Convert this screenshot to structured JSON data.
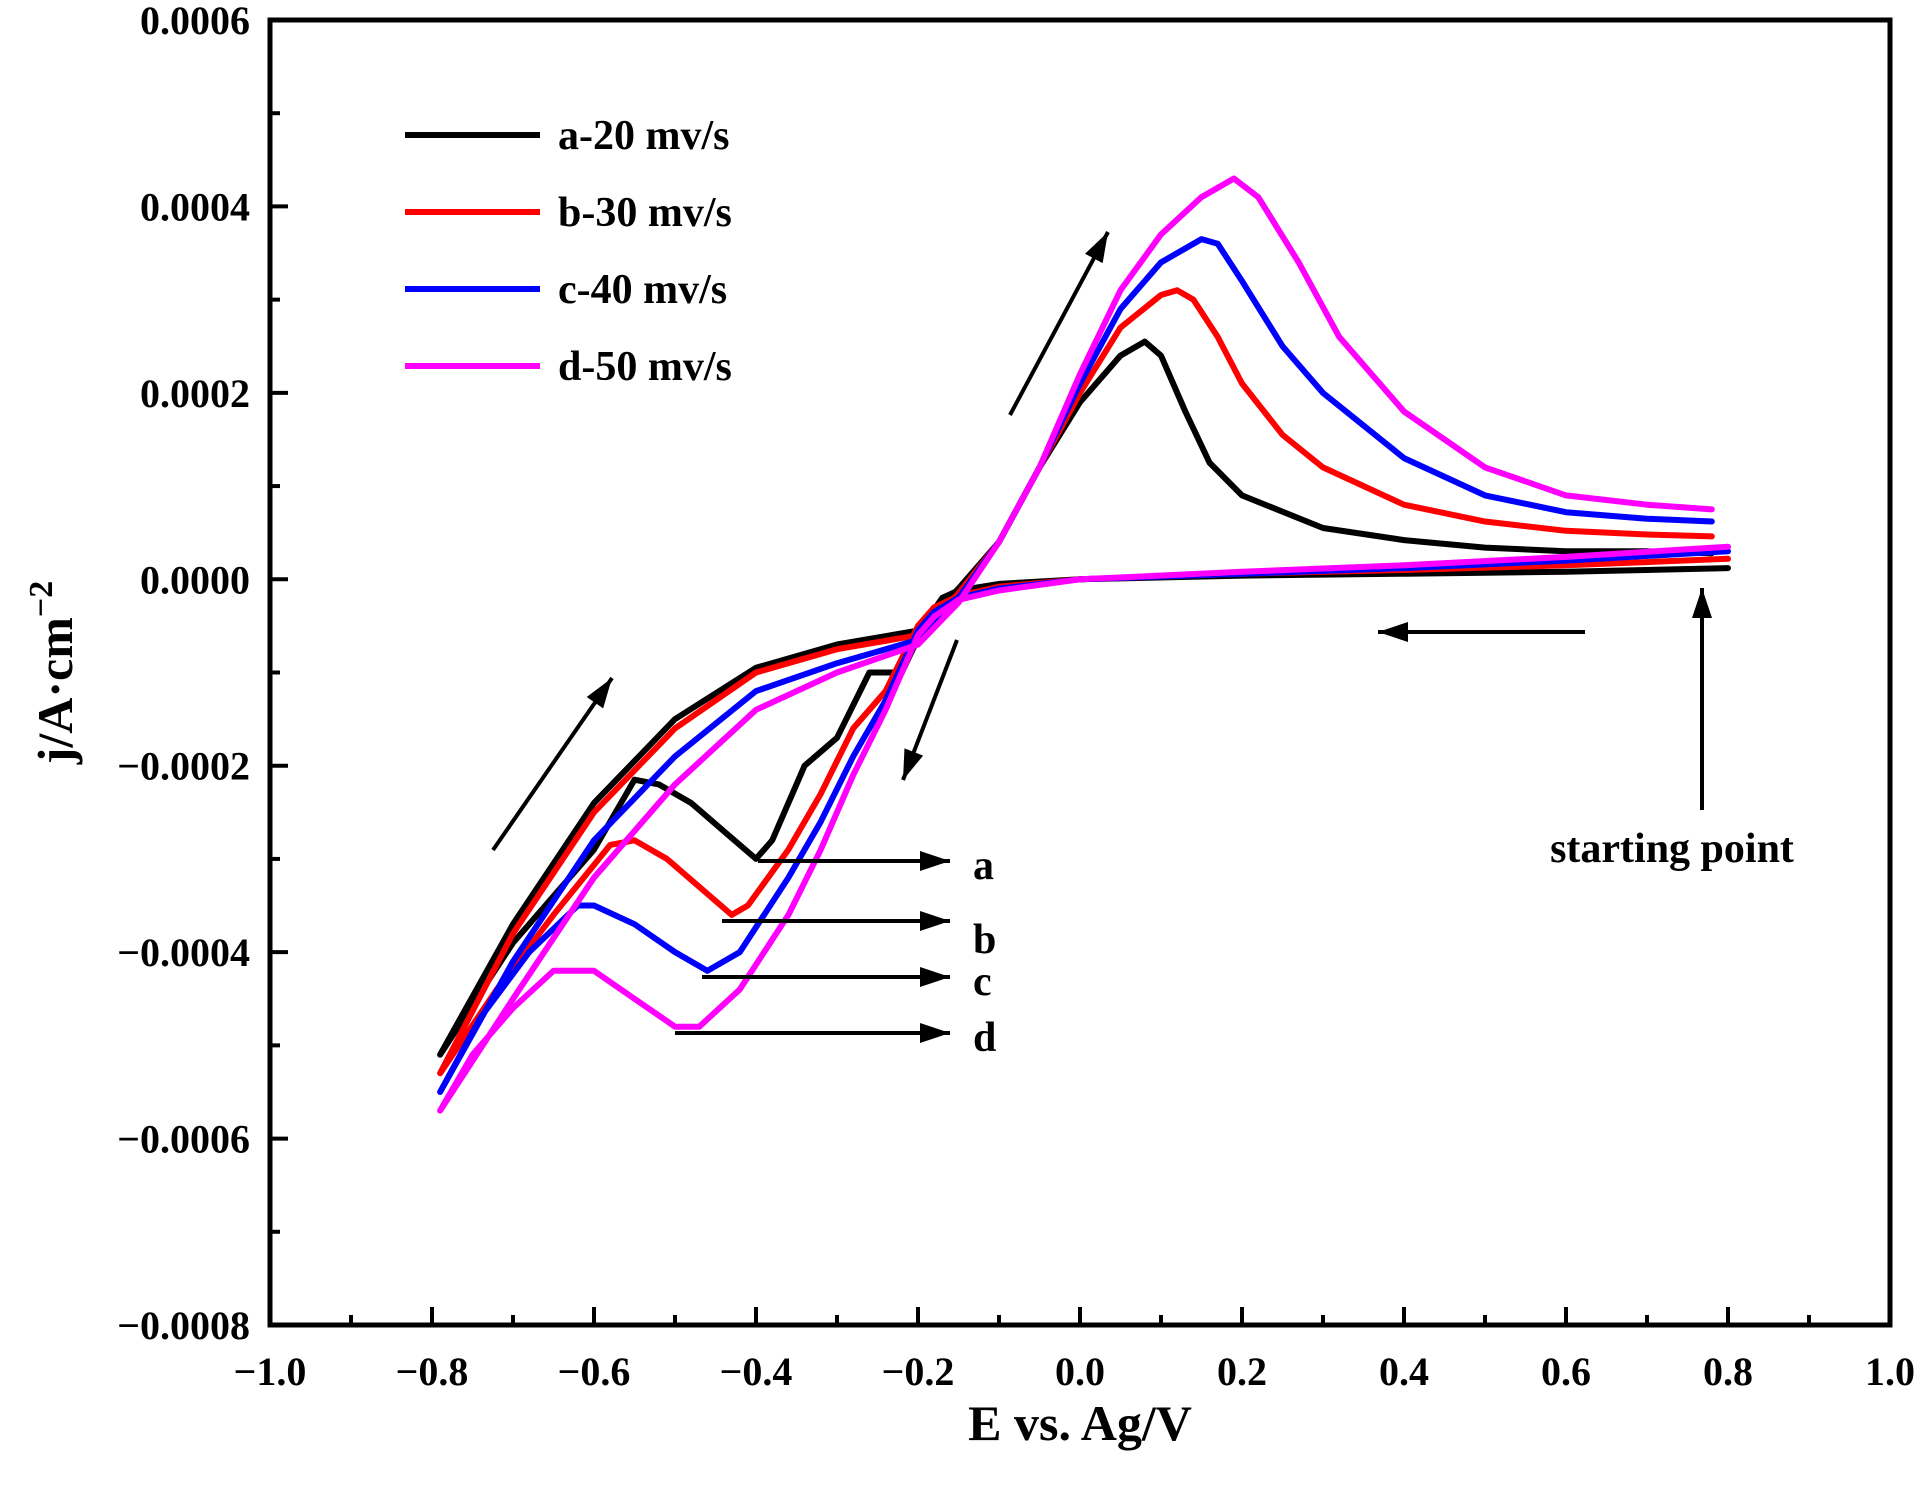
{
  "chart_data": {
    "type": "line",
    "xlabel": "E vs. Ag/V",
    "ylabel": "j/A·cm",
    "ylabel_superscript": "−2",
    "xlim": [
      -1.0,
      1.0
    ],
    "ylim": [
      -0.0008,
      0.0006
    ],
    "xticks": [
      -1.0,
      -0.8,
      -0.6,
      -0.4,
      -0.2,
      0.0,
      0.2,
      0.4,
      0.6,
      0.8,
      1.0
    ],
    "xtick_labels": [
      "−1.0",
      "−0.8",
      "−0.6",
      "−0.4",
      "−0.2",
      "0.0",
      "0.2",
      "0.4",
      "0.6",
      "0.8",
      "1.0"
    ],
    "yticks": [
      -0.0008,
      -0.0006,
      -0.0004,
      -0.0002,
      0.0,
      0.0002,
      0.0004,
      0.0006
    ],
    "ytick_labels": [
      "−0.0008",
      "−0.0006",
      "−0.0004",
      "−0.0002",
      "0.0000",
      "0.0002",
      "0.0004",
      "0.0006"
    ],
    "grid": false,
    "legend_position": "top-left",
    "series": [
      {
        "name": "a-20 mv/s",
        "color": "#000000",
        "label_letter": "a",
        "points": [
          [
            0.8,
            1.2e-05
          ],
          [
            0.6,
            8e-06
          ],
          [
            0.4,
            6e-06
          ],
          [
            0.2,
            4e-06
          ],
          [
            0.0,
            0.0
          ],
          [
            -0.1,
            -5e-06
          ],
          [
            -0.15,
            -1.2e-05
          ],
          [
            -0.17,
            -2e-05
          ],
          [
            -0.19,
            -4.5e-05
          ],
          [
            -0.22,
            -0.0001
          ],
          [
            -0.26,
            -0.0001
          ],
          [
            -0.3,
            -0.00017
          ],
          [
            -0.34,
            -0.0002
          ],
          [
            -0.38,
            -0.00028
          ],
          [
            -0.4,
            -0.0003
          ],
          [
            -0.44,
            -0.00027
          ],
          [
            -0.48,
            -0.00024
          ],
          [
            -0.52,
            -0.00022
          ],
          [
            -0.55,
            -0.000215
          ],
          [
            -0.6,
            -0.00029
          ],
          [
            -0.7,
            -0.00039
          ],
          [
            -0.79,
            -0.00051
          ],
          [
            -0.7,
            -0.00037
          ],
          [
            -0.6,
            -0.00024
          ],
          [
            -0.5,
            -0.00015
          ],
          [
            -0.4,
            -9.5e-05
          ],
          [
            -0.3,
            -7e-05
          ],
          [
            -0.2,
            -5.5e-05
          ],
          [
            -0.15,
            -1e-05
          ],
          [
            -0.1,
            4e-05
          ],
          [
            -0.05,
            0.00012
          ],
          [
            0.0,
            0.00019
          ],
          [
            0.05,
            0.00024
          ],
          [
            0.08,
            0.000255
          ],
          [
            0.1,
            0.00024
          ],
          [
            0.13,
            0.00018
          ],
          [
            0.16,
            0.000125
          ],
          [
            0.2,
            9e-05
          ],
          [
            0.3,
            5.5e-05
          ],
          [
            0.4,
            4.2e-05
          ],
          [
            0.5,
            3.4e-05
          ],
          [
            0.6,
            3e-05
          ],
          [
            0.7,
            3e-05
          ],
          [
            0.78,
            2.8e-05
          ]
        ]
      },
      {
        "name": "b-30 mv/s",
        "color": "#ff0000",
        "label_letter": "b",
        "points": [
          [
            0.8,
            2.2e-05
          ],
          [
            0.6,
            1.5e-05
          ],
          [
            0.4,
            1e-05
          ],
          [
            0.2,
            6e-06
          ],
          [
            0.0,
            0.0
          ],
          [
            -0.1,
            -8e-06
          ],
          [
            -0.15,
            -1.8e-05
          ],
          [
            -0.18,
            -3e-05
          ],
          [
            -0.2,
            -5e-05
          ],
          [
            -0.24,
            -0.00012
          ],
          [
            -0.28,
            -0.00016
          ],
          [
            -0.32,
            -0.00023
          ],
          [
            -0.36,
            -0.00029
          ],
          [
            -0.41,
            -0.00035
          ],
          [
            -0.43,
            -0.00036
          ],
          [
            -0.47,
            -0.00033
          ],
          [
            -0.51,
            -0.0003
          ],
          [
            -0.55,
            -0.00028
          ],
          [
            -0.58,
            -0.000285
          ],
          [
            -0.65,
            -0.00036
          ],
          [
            -0.72,
            -0.00044
          ],
          [
            -0.79,
            -0.00053
          ],
          [
            -0.7,
            -0.00038
          ],
          [
            -0.6,
            -0.00025
          ],
          [
            -0.5,
            -0.00016
          ],
          [
            -0.4,
            -0.0001
          ],
          [
            -0.3,
            -7.5e-05
          ],
          [
            -0.2,
            -6e-05
          ],
          [
            -0.15,
            -1.5e-05
          ],
          [
            -0.1,
            4e-05
          ],
          [
            -0.05,
            0.00012
          ],
          [
            0.0,
            0.0002
          ],
          [
            0.05,
            0.00027
          ],
          [
            0.1,
            0.000305
          ],
          [
            0.12,
            0.00031
          ],
          [
            0.14,
            0.0003
          ],
          [
            0.17,
            0.00026
          ],
          [
            0.2,
            0.00021
          ],
          [
            0.25,
            0.000155
          ],
          [
            0.3,
            0.00012
          ],
          [
            0.4,
            8e-05
          ],
          [
            0.5,
            6.2e-05
          ],
          [
            0.6,
            5.2e-05
          ],
          [
            0.7,
            4.8e-05
          ],
          [
            0.78,
            4.6e-05
          ]
        ]
      },
      {
        "name": "c-40 mv/s",
        "color": "#0000ff",
        "label_letter": "c",
        "points": [
          [
            0.8,
            3e-05
          ],
          [
            0.6,
            2e-05
          ],
          [
            0.4,
            1.2e-05
          ],
          [
            0.2,
            6e-06
          ],
          [
            0.0,
            0.0
          ],
          [
            -0.1,
            -1e-05
          ],
          [
            -0.15,
            -2e-05
          ],
          [
            -0.18,
            -3.5e-05
          ],
          [
            -0.2,
            -5.5e-05
          ],
          [
            -0.24,
            -0.00013
          ],
          [
            -0.28,
            -0.00019
          ],
          [
            -0.32,
            -0.00026
          ],
          [
            -0.36,
            -0.00032
          ],
          [
            -0.42,
            -0.0004
          ],
          [
            -0.46,
            -0.00042
          ],
          [
            -0.5,
            -0.0004
          ],
          [
            -0.55,
            -0.00037
          ],
          [
            -0.6,
            -0.00035
          ],
          [
            -0.62,
            -0.00035
          ],
          [
            -0.68,
            -0.0004
          ],
          [
            -0.74,
            -0.00047
          ],
          [
            -0.79,
            -0.00055
          ],
          [
            -0.7,
            -0.00041
          ],
          [
            -0.6,
            -0.00028
          ],
          [
            -0.5,
            -0.00019
          ],
          [
            -0.4,
            -0.00012
          ],
          [
            -0.3,
            -9e-05
          ],
          [
            -0.2,
            -6.5e-05
          ],
          [
            -0.15,
            -2e-05
          ],
          [
            -0.1,
            4e-05
          ],
          [
            -0.05,
            0.00012
          ],
          [
            0.0,
            0.00021
          ],
          [
            0.05,
            0.00029
          ],
          [
            0.1,
            0.00034
          ],
          [
            0.15,
            0.000365
          ],
          [
            0.17,
            0.00036
          ],
          [
            0.2,
            0.00032
          ],
          [
            0.25,
            0.00025
          ],
          [
            0.3,
            0.0002
          ],
          [
            0.4,
            0.00013
          ],
          [
            0.5,
            9e-05
          ],
          [
            0.6,
            7.2e-05
          ],
          [
            0.7,
            6.5e-05
          ],
          [
            0.78,
            6.2e-05
          ]
        ]
      },
      {
        "name": "d-50 mv/s",
        "color": "#ff00ff",
        "label_letter": "d",
        "points": [
          [
            0.8,
            3.5e-05
          ],
          [
            0.6,
            2.4e-05
          ],
          [
            0.4,
            1.5e-05
          ],
          [
            0.2,
            8e-06
          ],
          [
            0.0,
            0.0
          ],
          [
            -0.1,
            -1.2e-05
          ],
          [
            -0.15,
            -2.2e-05
          ],
          [
            -0.18,
            -4e-05
          ],
          [
            -0.2,
            -6e-05
          ],
          [
            -0.24,
            -0.00014
          ],
          [
            -0.28,
            -0.00021
          ],
          [
            -0.32,
            -0.00029
          ],
          [
            -0.36,
            -0.00036
          ],
          [
            -0.42,
            -0.00044
          ],
          [
            -0.47,
            -0.00048
          ],
          [
            -0.5,
            -0.00048
          ],
          [
            -0.55,
            -0.00045
          ],
          [
            -0.6,
            -0.00042
          ],
          [
            -0.65,
            -0.00042
          ],
          [
            -0.7,
            -0.00046
          ],
          [
            -0.75,
            -0.00051
          ],
          [
            -0.79,
            -0.00057
          ],
          [
            -0.7,
            -0.00045
          ],
          [
            -0.6,
            -0.00032
          ],
          [
            -0.5,
            -0.00022
          ],
          [
            -0.4,
            -0.00014
          ],
          [
            -0.3,
            -0.0001
          ],
          [
            -0.2,
            -7e-05
          ],
          [
            -0.15,
            -2.5e-05
          ],
          [
            -0.1,
            4e-05
          ],
          [
            -0.05,
            0.00012
          ],
          [
            0.0,
            0.00022
          ],
          [
            0.05,
            0.00031
          ],
          [
            0.1,
            0.00037
          ],
          [
            0.15,
            0.00041
          ],
          [
            0.19,
            0.00043
          ],
          [
            0.22,
            0.00041
          ],
          [
            0.27,
            0.00034
          ],
          [
            0.32,
            0.00026
          ],
          [
            0.4,
            0.00018
          ],
          [
            0.5,
            0.00012
          ],
          [
            0.6,
            9e-05
          ],
          [
            0.7,
            8e-05
          ],
          [
            0.78,
            7.5e-05
          ]
        ]
      }
    ],
    "annotations": {
      "starting_point_label": "starting point",
      "starting_point": [
        0.77,
        0.0
      ]
    }
  }
}
